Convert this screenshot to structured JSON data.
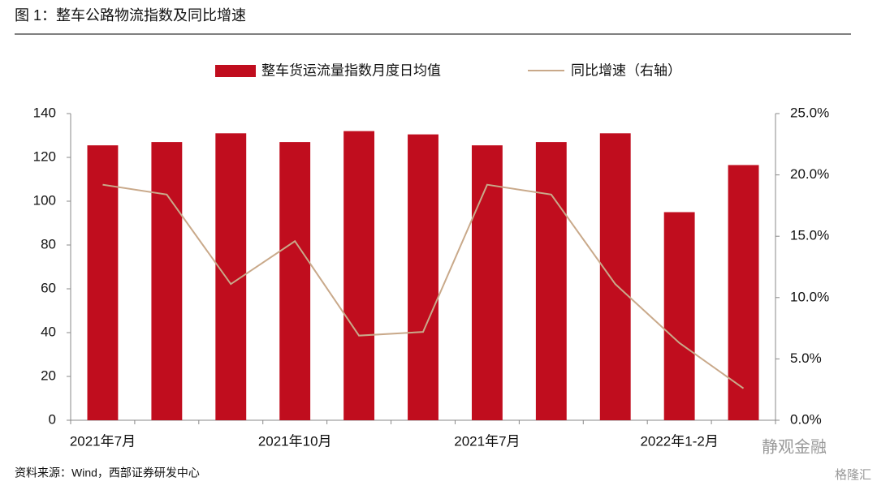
{
  "chart_data": {
    "type": "combo",
    "title": "图 1：整车公路物流指数及同比增速",
    "source": "资料来源：Wind，西部证券研发中心",
    "watermark": "静观金融",
    "logo": "格隆汇",
    "categories": [
      "2021年7月",
      null,
      null,
      "2021年10月",
      null,
      null,
      "2021年7月",
      null,
      null,
      "2022年1-2月",
      null
    ],
    "series": [
      {
        "name": "整车货运流量指数月度日均值",
        "type": "bar",
        "color": "#c00d1e",
        "values": [
          125.5,
          127,
          131,
          127,
          132,
          130.5,
          125.5,
          127,
          131,
          95,
          116.5
        ]
      },
      {
        "name": "同比增速（右轴）",
        "type": "line",
        "axis": "y2",
        "color": "#c9a98a",
        "values": [
          19.2,
          18.4,
          11.1,
          14.6,
          6.9,
          7.2,
          19.2,
          18.4,
          11.1,
          6.3,
          2.6
        ]
      }
    ],
    "ylim": [
      0,
      140
    ],
    "yticks": [
      0,
      20,
      40,
      60,
      80,
      100,
      120,
      140
    ],
    "y2lim": [
      0,
      25
    ],
    "y2ticks": [
      {
        "value": 0,
        "label": "0.0%"
      },
      {
        "value": 5,
        "label": "5.0%"
      },
      {
        "value": 10,
        "label": "10.0%"
      },
      {
        "value": 15,
        "label": "15.0%"
      },
      {
        "value": 20,
        "label": "20.0%"
      },
      {
        "value": 25,
        "label": "25.0%"
      }
    ]
  }
}
